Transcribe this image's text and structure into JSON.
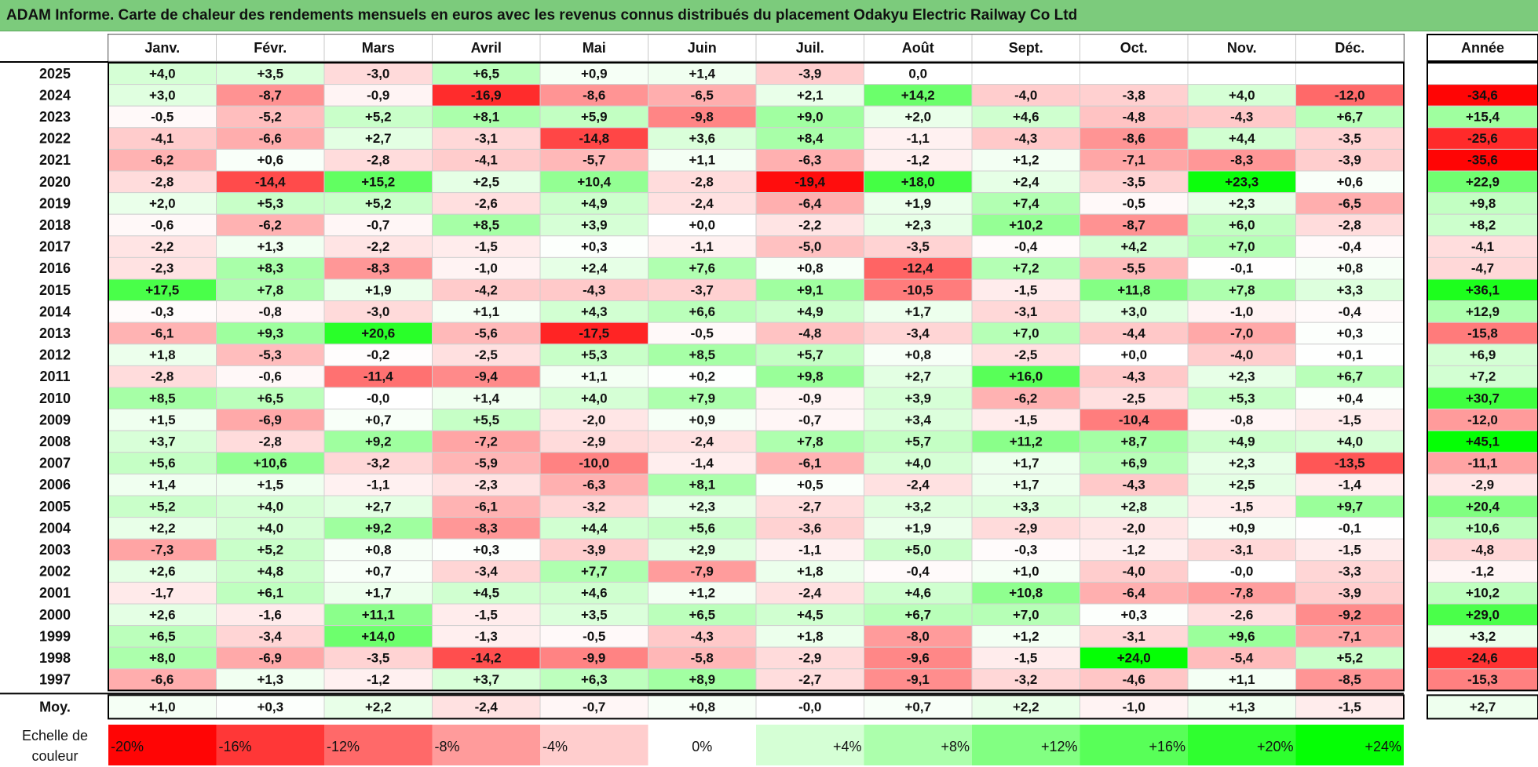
{
  "title": "ADAM Informe. Carte de chaleur des rendements mensuels en euros avec les revenus connus distribués du placement Odakyu Electric Railway Co Ltd",
  "chart_data": {
    "type": "heatmap",
    "months": [
      "Janv.",
      "Févr.",
      "Mars",
      "Avril",
      "Mai",
      "Juin",
      "Juil.",
      "Août",
      "Sept.",
      "Oct.",
      "Nov.",
      "Déc."
    ],
    "year_header": "Année",
    "rows": [
      {
        "year": "2025",
        "values": [
          "+4,0",
          "+3,5",
          "-3,0",
          "+6,5",
          "+0,9",
          "+1,4",
          "-3,9",
          "0,0",
          "",
          "",
          "",
          ""
        ],
        "annual": ""
      },
      {
        "year": "2024",
        "values": [
          "+3,0",
          "-8,7",
          "-0,9",
          "-16,9",
          "-8,6",
          "-6,5",
          "+2,1",
          "+14,2",
          "-4,0",
          "-3,8",
          "+4,0",
          "-12,0"
        ],
        "annual": "-34,6"
      },
      {
        "year": "2023",
        "values": [
          "-0,5",
          "-5,2",
          "+5,2",
          "+8,1",
          "+5,9",
          "-9,8",
          "+9,0",
          "+2,0",
          "+4,6",
          "-4,8",
          "-4,3",
          "+6,7"
        ],
        "annual": "+15,4"
      },
      {
        "year": "2022",
        "values": [
          "-4,1",
          "-6,6",
          "+2,7",
          "-3,1",
          "-14,8",
          "+3,6",
          "+8,4",
          "-1,1",
          "-4,3",
          "-8,6",
          "+4,4",
          "-3,5"
        ],
        "annual": "-25,6"
      },
      {
        "year": "2021",
        "values": [
          "-6,2",
          "+0,6",
          "-2,8",
          "-4,1",
          "-5,7",
          "+1,1",
          "-6,3",
          "-1,2",
          "+1,2",
          "-7,1",
          "-8,3",
          "-3,9"
        ],
        "annual": "-35,6"
      },
      {
        "year": "2020",
        "values": [
          "-2,8",
          "-14,4",
          "+15,2",
          "+2,5",
          "+10,4",
          "-2,8",
          "-19,4",
          "+18,0",
          "+2,4",
          "-3,5",
          "+23,3",
          "+0,6"
        ],
        "annual": "+22,9"
      },
      {
        "year": "2019",
        "values": [
          "+2,0",
          "+5,3",
          "+5,2",
          "-2,6",
          "+4,9",
          "-2,4",
          "-6,4",
          "+1,9",
          "+7,4",
          "-0,5",
          "+2,3",
          "-6,5"
        ],
        "annual": "+9,8"
      },
      {
        "year": "2018",
        "values": [
          "-0,6",
          "-6,2",
          "-0,7",
          "+8,5",
          "+3,9",
          "+0,0",
          "-2,2",
          "+2,3",
          "+10,2",
          "-8,7",
          "+6,0",
          "-2,8"
        ],
        "annual": "+8,2"
      },
      {
        "year": "2017",
        "values": [
          "-2,2",
          "+1,3",
          "-2,2",
          "-1,5",
          "+0,3",
          "-1,1",
          "-5,0",
          "-3,5",
          "-0,4",
          "+4,2",
          "+7,0",
          "-0,4"
        ],
        "annual": "-4,1"
      },
      {
        "year": "2016",
        "values": [
          "-2,3",
          "+8,3",
          "-8,3",
          "-1,0",
          "+2,4",
          "+7,6",
          "+0,8",
          "-12,4",
          "+7,2",
          "-5,5",
          "-0,1",
          "+0,8"
        ],
        "annual": "-4,7"
      },
      {
        "year": "2015",
        "values": [
          "+17,5",
          "+7,8",
          "+1,9",
          "-4,2",
          "-4,3",
          "-3,7",
          "+9,1",
          "-10,5",
          "-1,5",
          "+11,8",
          "+7,8",
          "+3,3"
        ],
        "annual": "+36,1"
      },
      {
        "year": "2014",
        "values": [
          "-0,3",
          "-0,8",
          "-3,0",
          "+1,1",
          "+4,3",
          "+6,6",
          "+4,9",
          "+1,7",
          "-3,1",
          "+3,0",
          "-1,0",
          "-0,4"
        ],
        "annual": "+12,9"
      },
      {
        "year": "2013",
        "values": [
          "-6,1",
          "+9,3",
          "+20,6",
          "-5,6",
          "-17,5",
          "-0,5",
          "-4,8",
          "-3,4",
          "+7,0",
          "-4,4",
          "-7,0",
          "+0,3"
        ],
        "annual": "-15,8"
      },
      {
        "year": "2012",
        "values": [
          "+1,8",
          "-5,3",
          "-0,2",
          "-2,5",
          "+5,3",
          "+8,5",
          "+5,7",
          "+0,8",
          "-2,5",
          "+0,0",
          "-4,0",
          "+0,1"
        ],
        "annual": "+6,9"
      },
      {
        "year": "2011",
        "values": [
          "-2,8",
          "-0,6",
          "-11,4",
          "-9,4",
          "+1,1",
          "+0,2",
          "+9,8",
          "+2,7",
          "+16,0",
          "-4,3",
          "+2,3",
          "+6,7"
        ],
        "annual": "+7,2"
      },
      {
        "year": "2010",
        "values": [
          "+8,5",
          "+6,5",
          "-0,0",
          "+1,4",
          "+4,0",
          "+7,9",
          "-0,9",
          "+3,9",
          "-6,2",
          "-2,5",
          "+5,3",
          "+0,4"
        ],
        "annual": "+30,7"
      },
      {
        "year": "2009",
        "values": [
          "+1,5",
          "-6,9",
          "+0,7",
          "+5,5",
          "-2,0",
          "+0,9",
          "-0,7",
          "+3,4",
          "-1,5",
          "-10,4",
          "-0,8",
          "-1,5"
        ],
        "annual": "-12,0"
      },
      {
        "year": "2008",
        "values": [
          "+3,7",
          "-2,8",
          "+9,2",
          "-7,2",
          "-2,9",
          "-2,4",
          "+7,8",
          "+5,7",
          "+11,2",
          "+8,7",
          "+4,9",
          "+4,0"
        ],
        "annual": "+45,1"
      },
      {
        "year": "2007",
        "values": [
          "+5,6",
          "+10,6",
          "-3,2",
          "-5,9",
          "-10,0",
          "-1,4",
          "-6,1",
          "+4,0",
          "+1,7",
          "+6,9",
          "+2,3",
          "-13,5"
        ],
        "annual": "-11,1"
      },
      {
        "year": "2006",
        "values": [
          "+1,4",
          "+1,5",
          "-1,1",
          "-2,3",
          "-6,3",
          "+8,1",
          "+0,5",
          "-2,4",
          "+1,7",
          "-4,3",
          "+2,5",
          "-1,4"
        ],
        "annual": "-2,9"
      },
      {
        "year": "2005",
        "values": [
          "+5,2",
          "+4,0",
          "+2,7",
          "-6,1",
          "-3,2",
          "+2,3",
          "-2,7",
          "+3,2",
          "+3,3",
          "+2,8",
          "-1,5",
          "+9,7"
        ],
        "annual": "+20,4"
      },
      {
        "year": "2004",
        "values": [
          "+2,2",
          "+4,0",
          "+9,2",
          "-8,3",
          "+4,4",
          "+5,6",
          "-3,6",
          "+1,9",
          "-2,9",
          "-2,0",
          "+0,9",
          "-0,1"
        ],
        "annual": "+10,6"
      },
      {
        "year": "2003",
        "values": [
          "-7,3",
          "+5,2",
          "+0,8",
          "+0,3",
          "-3,9",
          "+2,9",
          "-1,1",
          "+5,0",
          "-0,3",
          "-1,2",
          "-3,1",
          "-1,5"
        ],
        "annual": "-4,8"
      },
      {
        "year": "2002",
        "values": [
          "+2,6",
          "+4,8",
          "+0,7",
          "-3,4",
          "+7,7",
          "-7,9",
          "+1,8",
          "-0,4",
          "+1,0",
          "-4,0",
          "-0,0",
          "-3,3"
        ],
        "annual": "-1,2"
      },
      {
        "year": "2001",
        "values": [
          "-1,7",
          "+6,1",
          "+1,7",
          "+4,5",
          "+4,6",
          "+1,2",
          "-2,4",
          "+4,6",
          "+10,8",
          "-6,4",
          "-7,8",
          "-3,9"
        ],
        "annual": "+10,2"
      },
      {
        "year": "2000",
        "values": [
          "+2,6",
          "-1,6",
          "+11,1",
          "-1,5",
          "+3,5",
          "+6,5",
          "+4,5",
          "+6,7",
          "+7,0",
          "+0,3",
          "-2,6",
          "-9,2"
        ],
        "annual": "+29,0"
      },
      {
        "year": "1999",
        "values": [
          "+6,5",
          "-3,4",
          "+14,0",
          "-1,3",
          "-0,5",
          "-4,3",
          "+1,8",
          "-8,0",
          "+1,2",
          "-3,1",
          "+9,6",
          "-7,1"
        ],
        "annual": "+3,2"
      },
      {
        "year": "1998",
        "values": [
          "+8,0",
          "-6,9",
          "-3,5",
          "-14,2",
          "-9,9",
          "-5,8",
          "-2,9",
          "-9,6",
          "-1,5",
          "+24,0",
          "-5,4",
          "+5,2"
        ],
        "annual": "-24,6"
      },
      {
        "year": "1997",
        "values": [
          "-6,6",
          "+1,3",
          "-1,2",
          "+3,7",
          "+6,3",
          "+8,9",
          "-2,7",
          "-9,1",
          "-3,2",
          "-4,6",
          "+1,1",
          "-8,5"
        ],
        "annual": "-15,3"
      }
    ],
    "average": {
      "label": "Moy.",
      "values": [
        "+1,0",
        "+0,3",
        "+2,2",
        "-2,4",
        "-0,7",
        "+0,8",
        "-0,0",
        "+0,7",
        "+2,2",
        "-1,0",
        "+1,3",
        "-1,5"
      ],
      "annual": "+2,7"
    },
    "scale": {
      "label_line1": "Echelle de",
      "label_line2": "couleur",
      "stops": [
        {
          "label": "-20%",
          "value": -20
        },
        {
          "label": "-16%",
          "value": -16
        },
        {
          "label": "-12%",
          "value": -12
        },
        {
          "label": "-8%",
          "value": -8
        },
        {
          "label": "-4%",
          "value": -4
        },
        {
          "label": "0%",
          "value": 0
        },
        {
          "label": "+4%",
          "value": 4
        },
        {
          "label": "+8%",
          "value": 8
        },
        {
          "label": "+12%",
          "value": 12
        },
        {
          "label": "+16%",
          "value": 16
        },
        {
          "label": "+20%",
          "value": 20
        },
        {
          "label": "+24%",
          "value": 24
        }
      ]
    },
    "colors": {
      "negative_max": "#ff0000",
      "positive_max": "#00ff00",
      "neutral": "#ffffff",
      "title_bg": "#7ccb7c"
    }
  }
}
